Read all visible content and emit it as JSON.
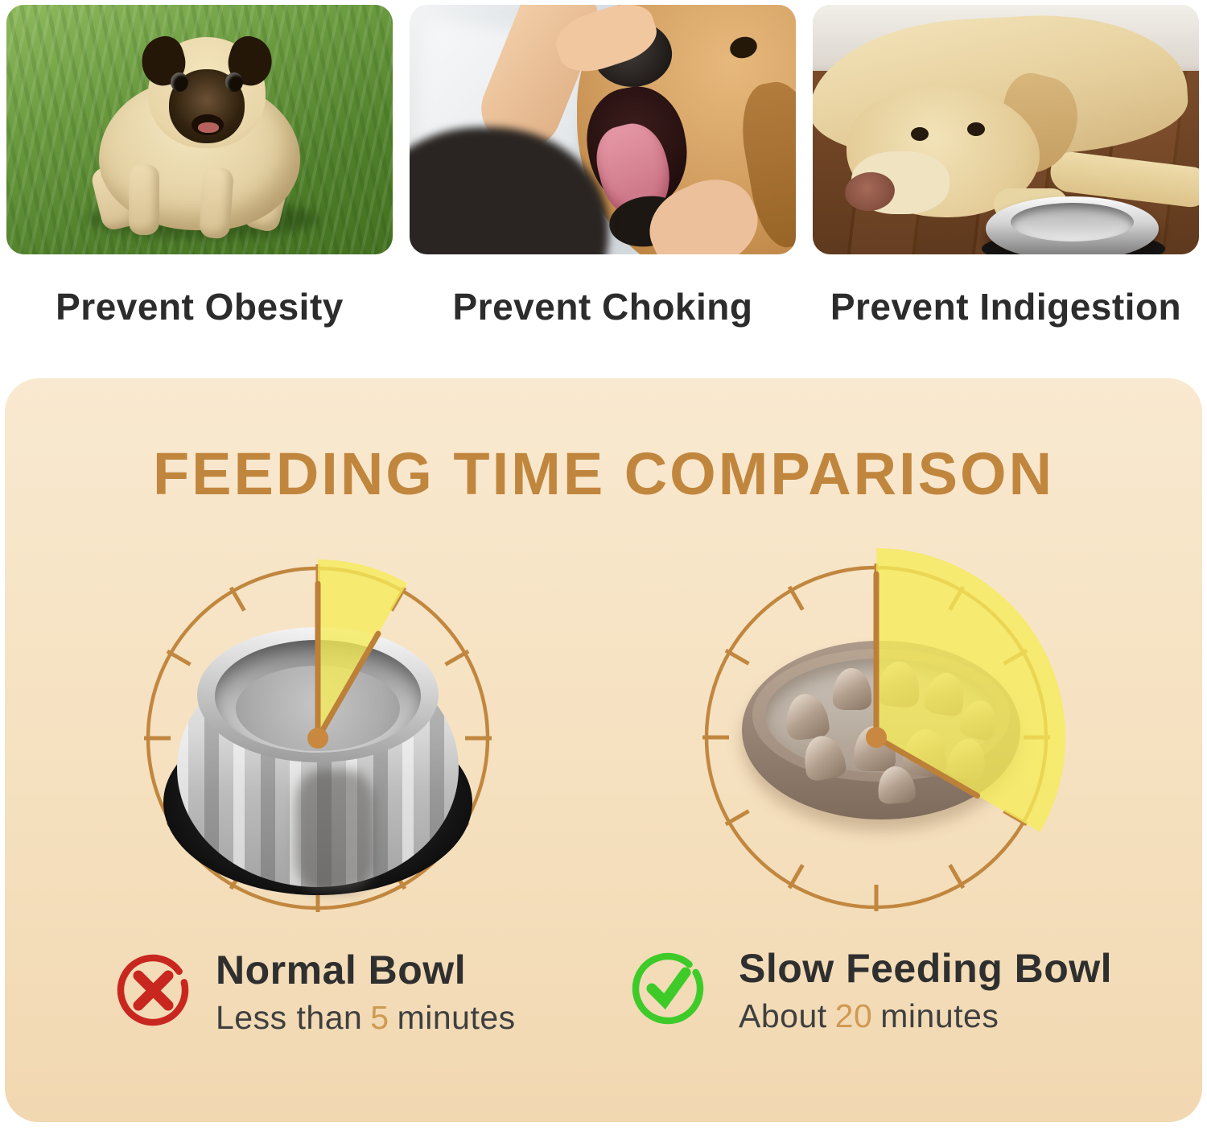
{
  "benefits": {
    "items": [
      {
        "caption": "Prevent Obesity",
        "photo_icon": "overweight-pug-on-grass-photo"
      },
      {
        "caption": "Prevent Choking",
        "photo_icon": "hand-checking-dog-mouth-photo"
      },
      {
        "caption": "Prevent Indigestion",
        "photo_icon": "sad-dog-beside-empty-bowl-photo"
      }
    ]
  },
  "panel": {
    "title": "FEEDING TIME COMPARISON",
    "comparisons": [
      {
        "id": "normal-bowl",
        "icon": "cross-icon",
        "label": "Normal Bowl",
        "time": {
          "prefix": "Less than",
          "value": "5",
          "suffix": "minutes"
        },
        "clock": {
          "minutes": 5,
          "total_minutes": 60,
          "tick_count": 12,
          "wedge_start_deg": 0,
          "wedge_end_deg": 30,
          "hand_angles_deg": [
            0,
            30
          ],
          "bowl": "stainless-steel-bowl"
        }
      },
      {
        "id": "slow-feeding-bowl",
        "icon": "check-icon",
        "label": "Slow Feeding Bowl",
        "time": {
          "prefix": "About",
          "value": "20",
          "suffix": "minutes"
        },
        "clock": {
          "minutes": 20,
          "total_minutes": 60,
          "tick_count": 12,
          "wedge_start_deg": 0,
          "wedge_end_deg": 120,
          "hand_angles_deg": [
            0,
            120
          ],
          "bowl": "slow-feeder-maze-bowl"
        }
      }
    ]
  },
  "colors": {
    "panel_top": "#f9e9d0",
    "panel_bottom": "#f1d8b1",
    "accent_orange": "#c1863e",
    "wedge_yellow": "#f6ec58",
    "text_dark": "#2f2f2f",
    "number_accent": "#cf9a52",
    "cross_red": "#c8271f",
    "check_green": "#3ecb2a"
  }
}
